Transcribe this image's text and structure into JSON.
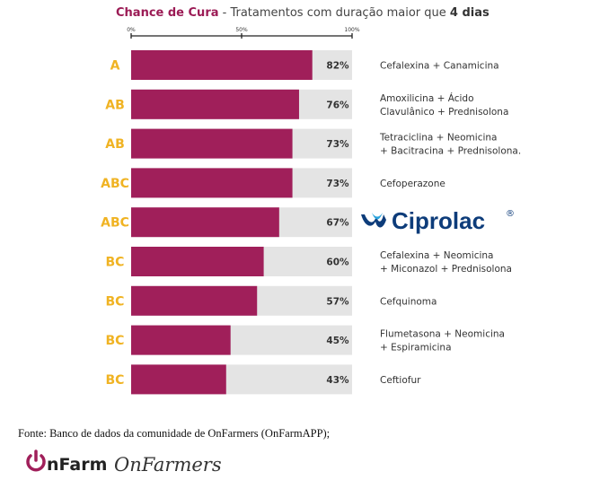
{
  "title": {
    "prefix": "Chance de Cura",
    "middle": " - Tratamentos com duração maior que ",
    "bold": "4 dias"
  },
  "chart_data": {
    "type": "bar",
    "orientation": "horizontal",
    "axis_ticks": [
      "0%",
      "50%",
      "100%"
    ],
    "xlim": [
      0,
      100
    ],
    "groups": [
      "A",
      "AB",
      "AB",
      "ABC",
      "ABC",
      "BC",
      "BC",
      "BC",
      "BC"
    ],
    "values": [
      82,
      76,
      73,
      73,
      67,
      60,
      57,
      45,
      43
    ],
    "value_labels": [
      "82%",
      "76%",
      "73%",
      "73%",
      "67%",
      "60%",
      "57%",
      "45%",
      "43%"
    ],
    "treatments": [
      [
        "Cefalexina + Canamicina"
      ],
      [
        "Amoxilicina + Ácido",
        "Clavulânico + Prednisolona"
      ],
      [
        "Tetraciclina + Neomicina",
        "+ Bacitracina + Prednisolona."
      ],
      [
        "Cefoperazone"
      ],
      [],
      [
        "Cefalexina + Neomicina",
        "+ Miconazol + Prednisolona"
      ],
      [
        "Cefquinoma"
      ],
      [
        "Flumetasona + Neomicina",
        "+ Espiramicina"
      ],
      [
        "Ceftiofur"
      ]
    ],
    "colors": {
      "bar": "#a01f5a",
      "track": "#e4e4e4",
      "group_label": "#f0b323"
    }
  },
  "brand": {
    "name": "Ciprolac",
    "mark": "®",
    "color": "#0d3c7a"
  },
  "source": "Fonte: Banco de dados da comunidade de OnFarmers (OnFarmAPP);",
  "logos": {
    "onfarm": "nFarm",
    "onfarmers": "OnFarmers"
  }
}
